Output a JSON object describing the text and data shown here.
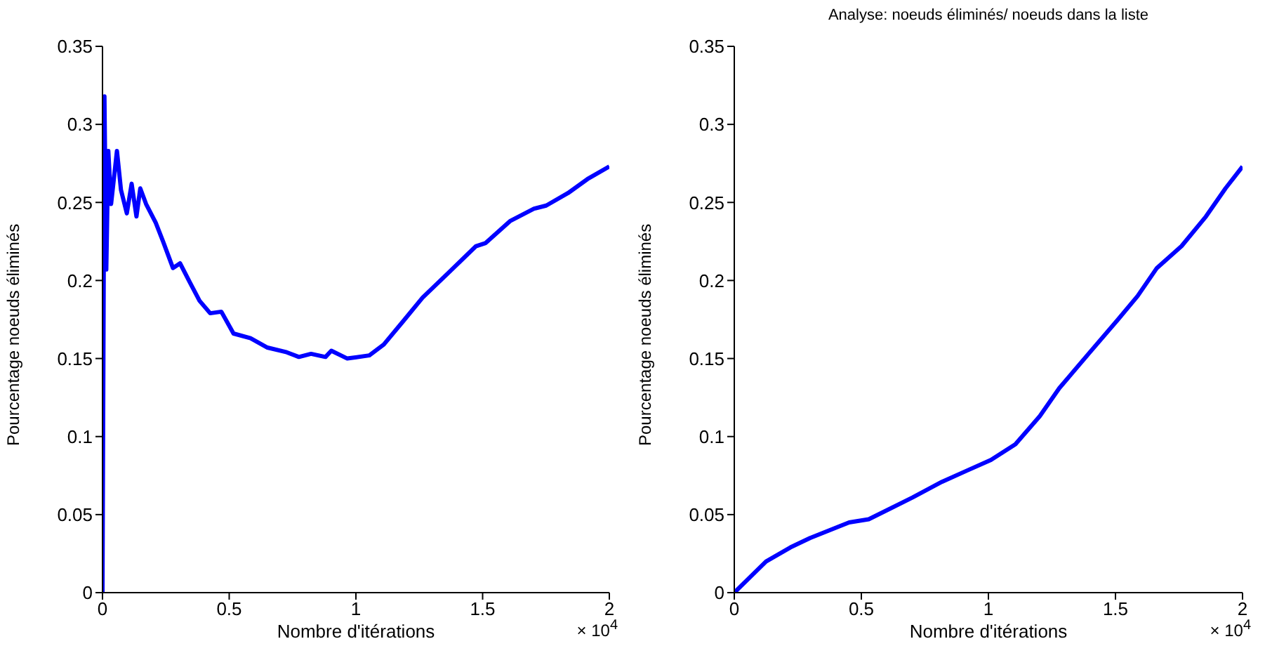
{
  "chart_data": [
    {
      "type": "line",
      "xlabel": "Nombre d'itérations",
      "ylabel": "Pourcentage noeuds éliminés",
      "annotations": [
        "× 10$^{4}$"
      ],
      "x": [
        0,
        0.0077,
        0.015,
        0.023,
        0.034,
        0.057,
        0.073,
        0.096,
        0.115,
        0.134,
        0.149,
        0.172,
        0.21,
        0.239,
        0.278,
        0.306,
        0.344,
        0.383,
        0.425,
        0.469,
        0.517,
        0.584,
        0.651,
        0.727,
        0.775,
        0.823,
        0.88,
        0.903,
        0.966,
        1.053,
        1.11,
        1.187,
        1.263,
        1.359,
        1.474,
        1.512,
        1.608,
        1.703,
        1.751,
        1.837,
        1.914,
        2
      ],
      "series": [
        {
          "color": "#0000ff",
          "values": [
            0,
            0.318,
            0.207,
            0.283,
            0.249,
            0.283,
            0.258,
            0.243,
            0.262,
            0.241,
            0.259,
            0.249,
            0.237,
            0.225,
            0.208,
            0.211,
            0.199,
            0.187,
            0.179,
            0.18,
            0.166,
            0.163,
            0.157,
            0.154,
            0.151,
            0.153,
            0.151,
            0.155,
            0.15,
            0.152,
            0.159,
            0.174,
            0.189,
            0.204,
            0.222,
            0.224,
            0.238,
            0.246,
            0.248,
            0.256,
            0.265,
            0.273
          ]
        }
      ],
      "xlim": [
        0,
        2
      ],
      "xticks": [
        0,
        0.5,
        1,
        1.5,
        2
      ],
      "ylim": [
        0,
        0.35
      ],
      "yticks": [
        0,
        0.05,
        0.1,
        0.15,
        0.2,
        0.25,
        0.3,
        0.35
      ],
      "grid": false
    },
    {
      "type": "line",
      "title": "Analyse: noeuds éliminés/ noeuds dans la liste",
      "xlabel": "Nombre d'itérations",
      "ylabel": "Pourcentage noeuds éliminés",
      "annotations": [
        "× 10$^{4}$"
      ],
      "x": [
        0,
        0.125,
        0.221,
        0.298,
        0.452,
        0.529,
        0.702,
        0.817,
        0.913,
        1.01,
        1.106,
        1.202,
        1.279,
        1.394,
        1.51,
        1.587,
        1.663,
        1.76,
        1.856,
        1.933,
        2
      ],
      "series": [
        {
          "color": "#0000ff",
          "values": [
            0,
            0.02,
            0.029,
            0.035,
            0.045,
            0.047,
            0.061,
            0.071,
            0.078,
            0.085,
            0.095,
            0.113,
            0.131,
            0.153,
            0.175,
            0.19,
            0.208,
            0.222,
            0.241,
            0.259,
            0.273
          ]
        }
      ],
      "xlim": [
        0,
        2
      ],
      "xticks": [
        0,
        0.5,
        1,
        1.5,
        2
      ],
      "ylim": [
        0,
        0.35
      ],
      "yticks": [
        0,
        0.05,
        0.1,
        0.15,
        0.2,
        0.25,
        0.3,
        0.35
      ],
      "grid": false
    }
  ]
}
